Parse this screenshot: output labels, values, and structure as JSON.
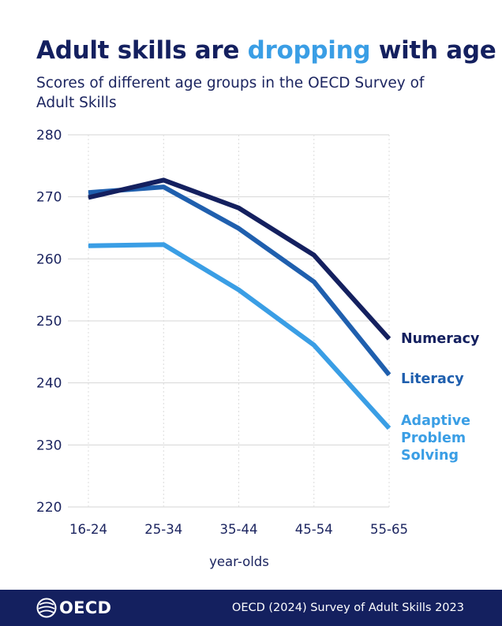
{
  "header": {
    "title_part1": "Adult skills are ",
    "title_highlight": "dropping",
    "title_part2": " with age",
    "subtitle": "Scores of different age groups in the OECD Survey of Adult Skills"
  },
  "chart_data": {
    "type": "line",
    "categories": [
      "16-24",
      "25-34",
      "35-44",
      "45-54",
      "55-65"
    ],
    "xlabel": "year-olds",
    "ylabel": "",
    "ylim": [
      220,
      280
    ],
    "yticks": [
      220,
      230,
      240,
      250,
      260,
      270,
      280
    ],
    "grid": true,
    "series": [
      {
        "name": "Numeracy",
        "label_lines": [
          "Numeracy"
        ],
        "color": "#14205f",
        "values": [
          269.9,
          272.7,
          268.2,
          260.6,
          247.1
        ]
      },
      {
        "name": "Literacy",
        "label_lines": [
          "Literacy"
        ],
        "color": "#1f5fae",
        "values": [
          270.7,
          271.6,
          264.9,
          256.3,
          241.3
        ]
      },
      {
        "name": "Adaptive Problem Solving",
        "label_lines": [
          "Adaptive",
          "Problem",
          "Solving"
        ],
        "color": "#3a9ee5",
        "values": [
          262.1,
          262.3,
          255.0,
          246.1,
          232.7
        ]
      }
    ]
  },
  "footer": {
    "logo_text": "OECD",
    "source": "OECD (2024) Survey of Adult Skills 2023"
  },
  "colors": {
    "navy": "#14205f",
    "accent": "#3a9ee5",
    "grid": "#d6d6d6"
  }
}
